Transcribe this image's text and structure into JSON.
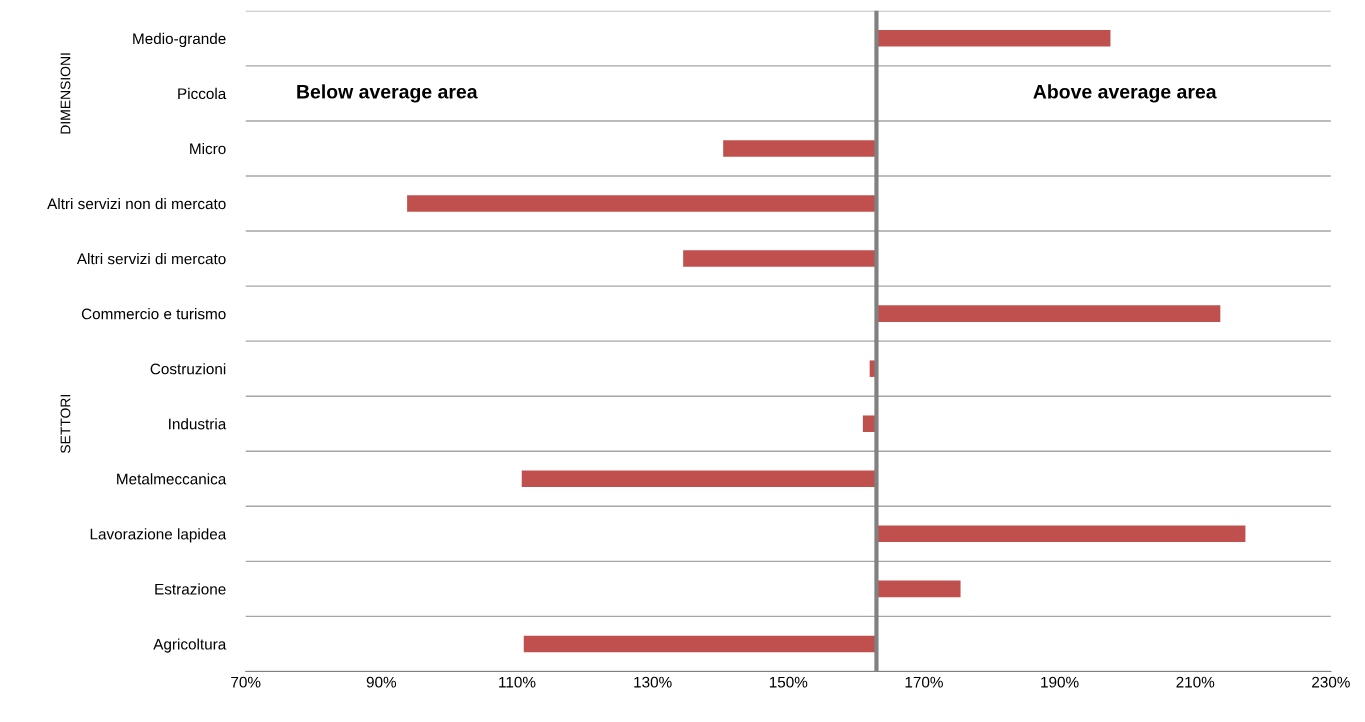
{
  "chart_data": {
    "type": "bar",
    "orientation": "horizontal",
    "categories": [
      "Medio-grande",
      "Piccola",
      "Micro",
      "Altri servizi non di mercato",
      "Altri servizi di mercato",
      "Commercio e turismo",
      "Costruzioni",
      "Industria",
      "Metalmeccanica",
      "Lavorazione lapidea",
      "Estrazione",
      "Agricoltura"
    ],
    "base": [
      163,
      null,
      163,
      163,
      163,
      163,
      163,
      163,
      163,
      163,
      163,
      163
    ],
    "values": [
      34.5,
      null,
      -22.6,
      -69.2,
      -28.5,
      50.7,
      -1,
      -2,
      -52.3,
      54.4,
      12.4,
      -52
    ],
    "color": "#c0504d",
    "xlim": [
      70,
      230
    ],
    "xticks": [
      {
        "value": 70,
        "label": "70%"
      },
      {
        "value": 90,
        "label": "90%"
      },
      {
        "value": 110,
        "label": "110%"
      },
      {
        "value": 130,
        "label": "130%"
      },
      {
        "value": 150,
        "label": "150%"
      },
      {
        "value": 170,
        "label": "170%"
      },
      {
        "value": 190,
        "label": "190%"
      },
      {
        "value": 210,
        "label": "210%"
      },
      {
        "value": 230,
        "label": "230%"
      }
    ],
    "ref_lines": [
      {
        "axis": "x",
        "value": 163,
        "color": "#808080"
      }
    ],
    "grid": "y",
    "legend": false,
    "annotations": [
      "DIMENSIONI",
      "SETTORI",
      "Below average area",
      "Above average area"
    ]
  }
}
